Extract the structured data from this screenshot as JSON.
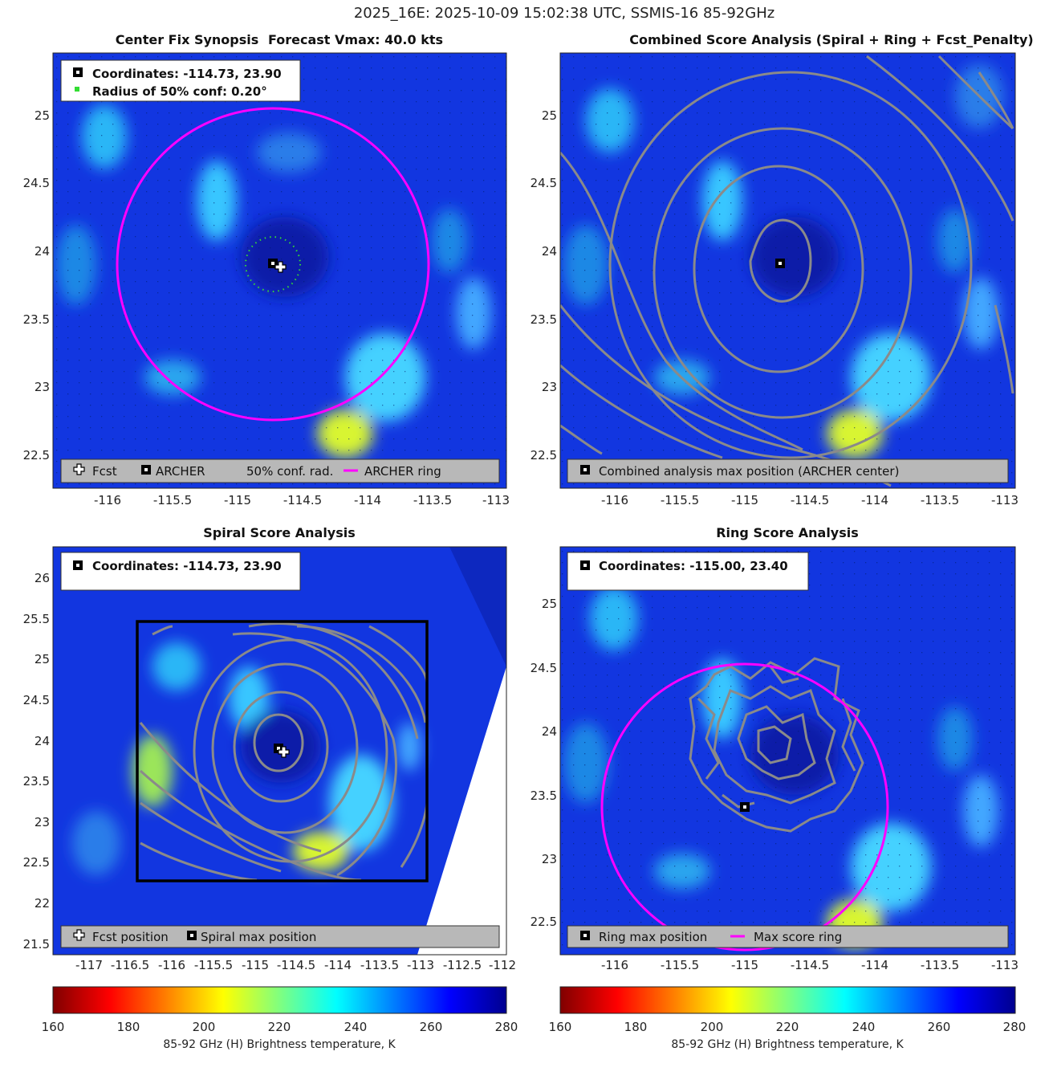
{
  "suptitle": "2025_16E: 2025-10-09 15:02:38 UTC, SSMIS-16 85-92GHz",
  "colors": {
    "archer_ring": "#ff00ff",
    "contour": "#8a8a8a",
    "legend_bg": "#b8b8b8",
    "conf_dot": "#33dd33"
  },
  "chart_data": [
    {
      "type": "heatmap",
      "id": "center-fix",
      "title": "Center Fix Synopsis",
      "title2": "Forecast Vmax: 40.0 kts",
      "xlim": [
        -116.4,
        -113.0
      ],
      "ylim": [
        22.3,
        25.4
      ],
      "xticks": [
        -116,
        -115.5,
        -115,
        -114.5,
        -114,
        -113.5,
        -113
      ],
      "xtick_labels": [
        "-116",
        "-115.5",
        "-115",
        "-114.5",
        "-114",
        "-113.5",
        "-113"
      ],
      "yticks": [
        22.5,
        23,
        23.5,
        24,
        24.5,
        25
      ],
      "ytick_labels": [
        "22.5",
        "23",
        "23.5",
        "24",
        "24.5",
        "25"
      ],
      "info_box": [
        "Coordinates: -114.73, 23.90",
        "Radius of 50% conf: 0.20°"
      ],
      "legend": [
        "Fcst",
        "ARCHER",
        "50% conf. rad.",
        "ARCHER ring"
      ],
      "archer_center": [
        -114.73,
        23.9
      ],
      "fcst_position": [
        -114.68,
        23.85
      ],
      "ring_radius_deg": 1.15,
      "conf_radius_deg": 0.2
    },
    {
      "type": "heatmap",
      "id": "combined-score",
      "title": "Combined Score Analysis (Spiral + Ring + Fcst_Penalty)",
      "xlim": [
        -116.4,
        -113.0
      ],
      "ylim": [
        22.3,
        25.4
      ],
      "xticks": [
        -116,
        -115.5,
        -115,
        -114.5,
        -114,
        -113.5,
        -113
      ],
      "xtick_labels": [
        "-116",
        "-115.5",
        "-115",
        "-114.5",
        "-114",
        "-113.5",
        "-113"
      ],
      "yticks": [
        22.5,
        23,
        23.5,
        24,
        24.5,
        25
      ],
      "ytick_labels": [
        "22.5",
        "23",
        "23.5",
        "24",
        "24.5",
        "25"
      ],
      "legend": [
        "Combined analysis max position (ARCHER center)"
      ],
      "max_position": [
        -114.73,
        23.9
      ]
    },
    {
      "type": "heatmap",
      "id": "spiral-score",
      "title": "Spiral Score Analysis",
      "xlim": [
        -117.45,
        -112.0
      ],
      "ylim": [
        21.3,
        26.5
      ],
      "xticks": [
        -117,
        -116.5,
        -116,
        -115.5,
        -115,
        -114.5,
        -114,
        -113.5,
        -113,
        -112.5,
        -112
      ],
      "xtick_labels": [
        "-117",
        "-116.5",
        "-116",
        "-115.5",
        "-115",
        "-114.5",
        "-114",
        "-113.5",
        "-113",
        "-112.5",
        "-112"
      ],
      "yticks": [
        21.5,
        22,
        22.5,
        23,
        23.5,
        24,
        24.5,
        25,
        25.5,
        26
      ],
      "ytick_labels": [
        "21.5",
        "22",
        "22.5",
        "23",
        "23.5",
        "24",
        "24.5",
        "25",
        "25.5",
        "26"
      ],
      "info_box": [
        "Coordinates: -114.73, 23.90"
      ],
      "legend": [
        "Fcst position",
        "Spiral max position"
      ],
      "max_position": [
        -114.73,
        23.9
      ],
      "fcst_position": [
        -114.68,
        23.85
      ],
      "search_box": [
        [
          -116.45,
          22.25
        ],
        [
          -112.95,
          25.45
        ]
      ]
    },
    {
      "type": "heatmap",
      "id": "ring-score",
      "title": "Ring Score Analysis",
      "xlim": [
        -116.4,
        -113.0
      ],
      "ylim": [
        22.3,
        25.4
      ],
      "xticks": [
        -116,
        -115.5,
        -115,
        -114.5,
        -114,
        -113.5,
        -113
      ],
      "xtick_labels": [
        "-116",
        "-115.5",
        "-115",
        "-114.5",
        "-114",
        "-113.5",
        "-113"
      ],
      "yticks": [
        22.5,
        23,
        23.5,
        24,
        24.5,
        25
      ],
      "ytick_labels": [
        "22.5",
        "23",
        "23.5",
        "24",
        "24.5",
        "25"
      ],
      "info_box": [
        "Coordinates: -115.00, 23.40"
      ],
      "legend": [
        "Ring max position",
        "Max score ring"
      ],
      "max_position": [
        -115.0,
        23.4
      ],
      "ring_center": [
        -114.9,
        23.4
      ],
      "ring_radius_deg": 1.05
    }
  ],
  "colorbars": [
    {
      "min": 160,
      "max": 280,
      "ticks": [
        "160",
        "180",
        "200",
        "220",
        "240",
        "260",
        "280"
      ],
      "label": "85-92 GHz (H) Brightness temperature, K"
    },
    {
      "min": 160,
      "max": 280,
      "ticks": [
        "160",
        "180",
        "200",
        "220",
        "240",
        "260",
        "280"
      ],
      "label": "85-92 GHz (H) Brightness temperature, K"
    }
  ]
}
